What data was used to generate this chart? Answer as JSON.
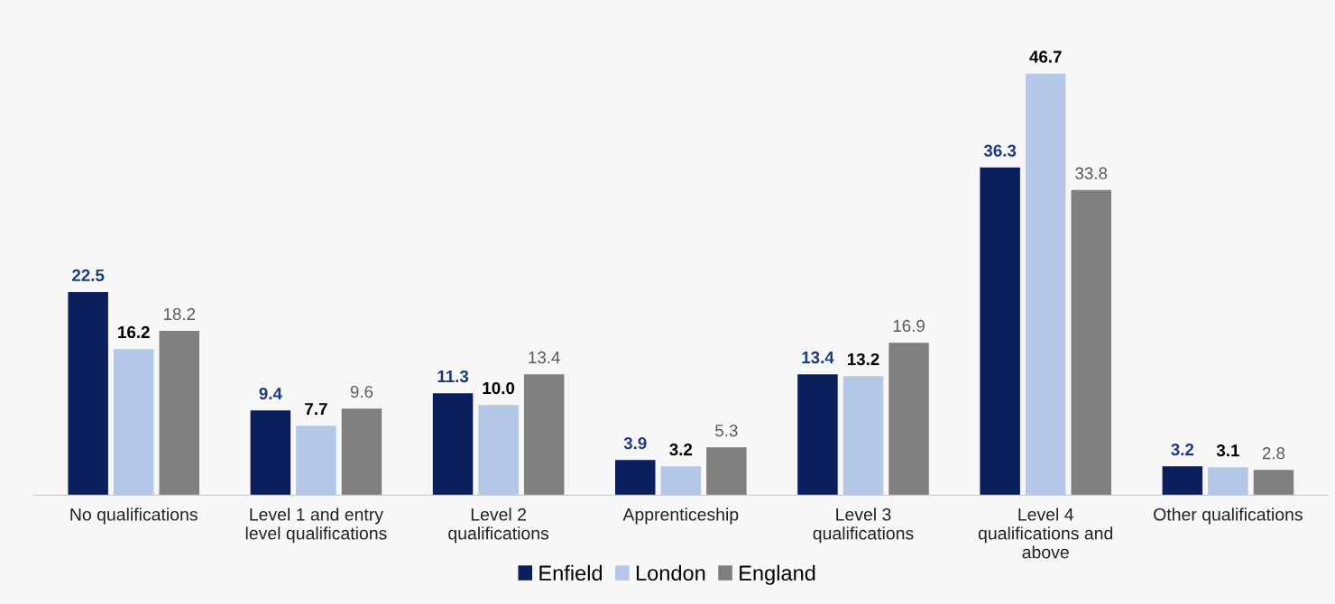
{
  "chart_data": {
    "type": "bar",
    "categories": [
      "No qualifications",
      "Level 1 and entry\nlevel qualifications",
      "Level 2\nqualifications",
      "Apprenticeship",
      "Level 3\nqualifications",
      "Level 4\nqualifications and\nabove",
      "Other qualifications"
    ],
    "series": [
      {
        "name": "Enfield",
        "color": "#0a1f5c",
        "values": [
          22.5,
          9.4,
          11.3,
          3.9,
          13.4,
          36.3,
          3.2
        ],
        "value_labels": [
          "22.5",
          "9.4",
          "11.3",
          "3.9",
          "13.4",
          "36.3",
          "3.2"
        ]
      },
      {
        "name": "London",
        "color": "#b4c7e7",
        "values": [
          16.2,
          7.7,
          10.0,
          3.2,
          13.2,
          46.7,
          3.1
        ],
        "value_labels": [
          "16.2",
          "7.7",
          "10.0",
          "3.2",
          "13.2",
          "46.7",
          "3.1"
        ]
      },
      {
        "name": "England",
        "color": "#7f7f7f",
        "values": [
          18.2,
          9.6,
          13.4,
          5.3,
          16.9,
          33.8,
          2.8
        ],
        "value_labels": [
          "18.2",
          "9.6",
          "13.4",
          "5.3",
          "16.9",
          "33.8",
          "2.8"
        ]
      }
    ],
    "legend": "bottom"
  }
}
